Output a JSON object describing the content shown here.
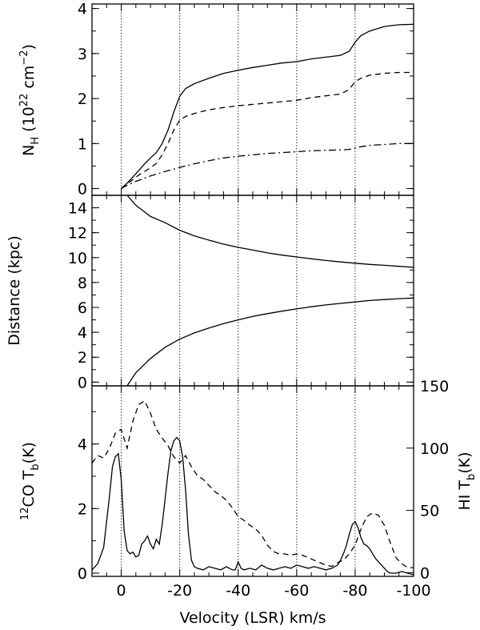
{
  "chart_data": [
    {
      "type": "line",
      "panel": "top",
      "ylabel": {
        "main": "N",
        "sub": "H",
        "unit_open": "(10",
        "exp": "22",
        "unit_mid": " cm",
        "exp2": "−2",
        "unit_close": ")"
      },
      "xlim": [
        10,
        -100
      ],
      "ylim": [
        -0.15,
        4.1
      ],
      "yticks": [
        0,
        1,
        2,
        3,
        4
      ],
      "ytick_labels": [
        "0",
        "1",
        "2",
        "3",
        "4"
      ],
      "series": [
        {
          "style": "solid",
          "x": [
            0,
            -2,
            -4,
            -6,
            -8,
            -10,
            -12,
            -14,
            -16,
            -18,
            -20,
            -22,
            -25,
            -30,
            -35,
            -40,
            -45,
            -50,
            -55,
            -60,
            -65,
            -70,
            -75,
            -78,
            -80,
            -82,
            -85,
            -90,
            -95,
            -100
          ],
          "y": [
            0,
            0.12,
            0.26,
            0.4,
            0.55,
            0.68,
            0.8,
            1.0,
            1.3,
            1.7,
            2.05,
            2.22,
            2.33,
            2.45,
            2.56,
            2.63,
            2.69,
            2.74,
            2.79,
            2.82,
            2.88,
            2.92,
            2.96,
            3.05,
            3.25,
            3.4,
            3.5,
            3.6,
            3.64,
            3.65
          ]
        },
        {
          "style": "dashed",
          "x": [
            0,
            -2,
            -4,
            -6,
            -8,
            -10,
            -12,
            -14,
            -16,
            -18,
            -20,
            -22,
            -25,
            -30,
            -35,
            -40,
            -45,
            -50,
            -55,
            -60,
            -65,
            -70,
            -75,
            -78,
            -80,
            -82,
            -85,
            -90,
            -95,
            -100
          ],
          "y": [
            0,
            0.1,
            0.2,
            0.3,
            0.38,
            0.46,
            0.56,
            0.75,
            1.0,
            1.3,
            1.52,
            1.6,
            1.67,
            1.75,
            1.8,
            1.84,
            1.87,
            1.9,
            1.93,
            1.96,
            2.02,
            2.06,
            2.1,
            2.2,
            2.38,
            2.45,
            2.52,
            2.56,
            2.58,
            2.58
          ]
        },
        {
          "style": "dashdot",
          "x": [
            0,
            -2,
            -5,
            -10,
            -15,
            -20,
            -25,
            -30,
            -35,
            -40,
            -45,
            -50,
            -55,
            -60,
            -65,
            -70,
            -75,
            -78,
            -80,
            -82,
            -85,
            -90,
            -95,
            -100
          ],
          "y": [
            0,
            0.07,
            0.16,
            0.28,
            0.38,
            0.47,
            0.55,
            0.62,
            0.68,
            0.72,
            0.75,
            0.78,
            0.8,
            0.82,
            0.84,
            0.85,
            0.86,
            0.87,
            0.9,
            0.93,
            0.96,
            0.98,
            1.0,
            1.0
          ]
        }
      ]
    },
    {
      "type": "line",
      "panel": "middle",
      "ylabel": "Distance (kpc)",
      "xlim": [
        10,
        -100
      ],
      "ylim": [
        -0.3,
        15
      ],
      "yticks": [
        0,
        2,
        4,
        6,
        8,
        10,
        12,
        14
      ],
      "ytick_labels": [
        "0",
        "2",
        "4",
        "6",
        "8",
        "10",
        "12",
        "14"
      ],
      "series": [
        {
          "style": "solid",
          "x": [
            -2,
            -5,
            -10,
            -15,
            -20,
            -25,
            -30,
            -35,
            -40,
            -45,
            -50,
            -55,
            -60,
            -65,
            -70,
            -75,
            -80,
            -85,
            -90,
            -95,
            -100
          ],
          "y": [
            15,
            14.2,
            13.3,
            12.8,
            12.2,
            11.75,
            11.4,
            11.08,
            10.82,
            10.6,
            10.38,
            10.2,
            10.05,
            9.9,
            9.77,
            9.65,
            9.55,
            9.45,
            9.38,
            9.3,
            9.22
          ]
        },
        {
          "style": "solid",
          "x": [
            -2,
            -5,
            -10,
            -15,
            -20,
            -25,
            -30,
            -35,
            -40,
            -45,
            -50,
            -55,
            -60,
            -65,
            -70,
            -75,
            -80,
            -85,
            -90,
            -95,
            -100
          ],
          "y": [
            -0.3,
            0.75,
            1.9,
            2.8,
            3.45,
            3.95,
            4.35,
            4.7,
            5.0,
            5.28,
            5.5,
            5.7,
            5.88,
            6.05,
            6.2,
            6.32,
            6.44,
            6.55,
            6.63,
            6.7,
            6.75
          ]
        }
      ]
    },
    {
      "type": "line",
      "panel": "bottom",
      "xlabel": "Velocity (LSR) km/s",
      "xlim": [
        10,
        -100
      ],
      "xticks": [
        0,
        -20,
        -40,
        -60,
        -80,
        -100
      ],
      "xtick_labels": [
        "0",
        "-20",
        "-40",
        "-60",
        "-80",
        "-100"
      ],
      "ylabel_left": {
        "pre": "12",
        "main": "CO T",
        "sub": "b",
        "tail": "(K)"
      },
      "ylabel_right": {
        "main": "HI  T",
        "sub": "b",
        "tail": "(K)"
      },
      "ylim_left": [
        -0.1,
        5.8
      ],
      "yticks_left": [
        0,
        2,
        4
      ],
      "ytick_labels_left": [
        "0",
        "2",
        "4"
      ],
      "ylim_right": [
        -3,
        150
      ],
      "yticks_right": [
        0,
        50,
        100,
        150
      ],
      "ytick_labels_right": [
        "0",
        "50",
        "100",
        "150"
      ],
      "series": [
        {
          "name": "12CO",
          "axis": "left",
          "style": "solid",
          "x": [
            10,
            8,
            6,
            4,
            3,
            2,
            1,
            0,
            -1,
            -2,
            -3,
            -4,
            -5,
            -6,
            -7,
            -8,
            -9,
            -10,
            -11,
            -12,
            -13,
            -14,
            -15,
            -16,
            -17,
            -18,
            -19,
            -20,
            -21,
            -22,
            -23,
            -24,
            -25,
            -26,
            -28,
            -30,
            -32,
            -34,
            -36,
            -38,
            -39,
            -40,
            -41,
            -42,
            -44,
            -46,
            -48,
            -50,
            -52,
            -54,
            -56,
            -58,
            -60,
            -62,
            -64,
            -66,
            -68,
            -70,
            -72,
            -74,
            -75,
            -76,
            -77,
            -78,
            -79,
            -80,
            -81,
            -82,
            -83,
            -84,
            -85,
            -86,
            -87,
            -88,
            -89,
            -90,
            -91,
            -92,
            -94,
            -96,
            -98,
            -100
          ],
          "y": [
            0.1,
            0.3,
            0.8,
            2.4,
            3.3,
            3.6,
            3.7,
            2.9,
            1.3,
            0.7,
            0.6,
            0.65,
            0.5,
            0.55,
            0.9,
            1.0,
            1.15,
            0.9,
            0.75,
            1.05,
            0.9,
            1.5,
            2.3,
            3.1,
            3.8,
            4.1,
            4.2,
            4.1,
            3.6,
            2.6,
            1.2,
            0.4,
            0.2,
            0.15,
            0.1,
            0.2,
            0.15,
            0.1,
            0.2,
            0.1,
            0.1,
            0.35,
            0.15,
            0.1,
            0.15,
            0.1,
            0.25,
            0.15,
            0.1,
            0.15,
            0.2,
            0.15,
            0.25,
            0.2,
            0.15,
            0.2,
            0.15,
            0.1,
            0.15,
            0.25,
            0.4,
            0.6,
            0.85,
            1.2,
            1.5,
            1.6,
            1.4,
            1.1,
            0.9,
            0.85,
            0.75,
            0.6,
            0.45,
            0.35,
            0.25,
            0.15,
            0.05,
            0.0,
            0.0,
            0.05,
            0.0,
            -0.05
          ]
        },
        {
          "name": "HI",
          "axis": "right",
          "style": "dashed",
          "x": [
            10,
            8,
            6,
            4,
            2,
            0,
            -2,
            -4,
            -6,
            -8,
            -10,
            -12,
            -14,
            -16,
            -18,
            -20,
            -22,
            -24,
            -26,
            -28,
            -30,
            -32,
            -34,
            -36,
            -38,
            -40,
            -42,
            -44,
            -46,
            -48,
            -50,
            -52,
            -54,
            -56,
            -58,
            -60,
            -62,
            -64,
            -66,
            -68,
            -70,
            -72,
            -74,
            -76,
            -78,
            -80,
            -82,
            -84,
            -86,
            -88,
            -90,
            -92,
            -94,
            -96,
            -98,
            -100
          ],
          "y": [
            88,
            94,
            92,
            100,
            112,
            115,
            100,
            122,
            135,
            138,
            128,
            115,
            108,
            102,
            93,
            88,
            94,
            85,
            78,
            75,
            70,
            65,
            62,
            58,
            52,
            45,
            42,
            38,
            35,
            30,
            22,
            17,
            15,
            15,
            14,
            15,
            14,
            12,
            10,
            8,
            6,
            5,
            8,
            10,
            15,
            22,
            35,
            45,
            48,
            46,
            38,
            24,
            12,
            7,
            4,
            4
          ]
        }
      ]
    }
  ]
}
